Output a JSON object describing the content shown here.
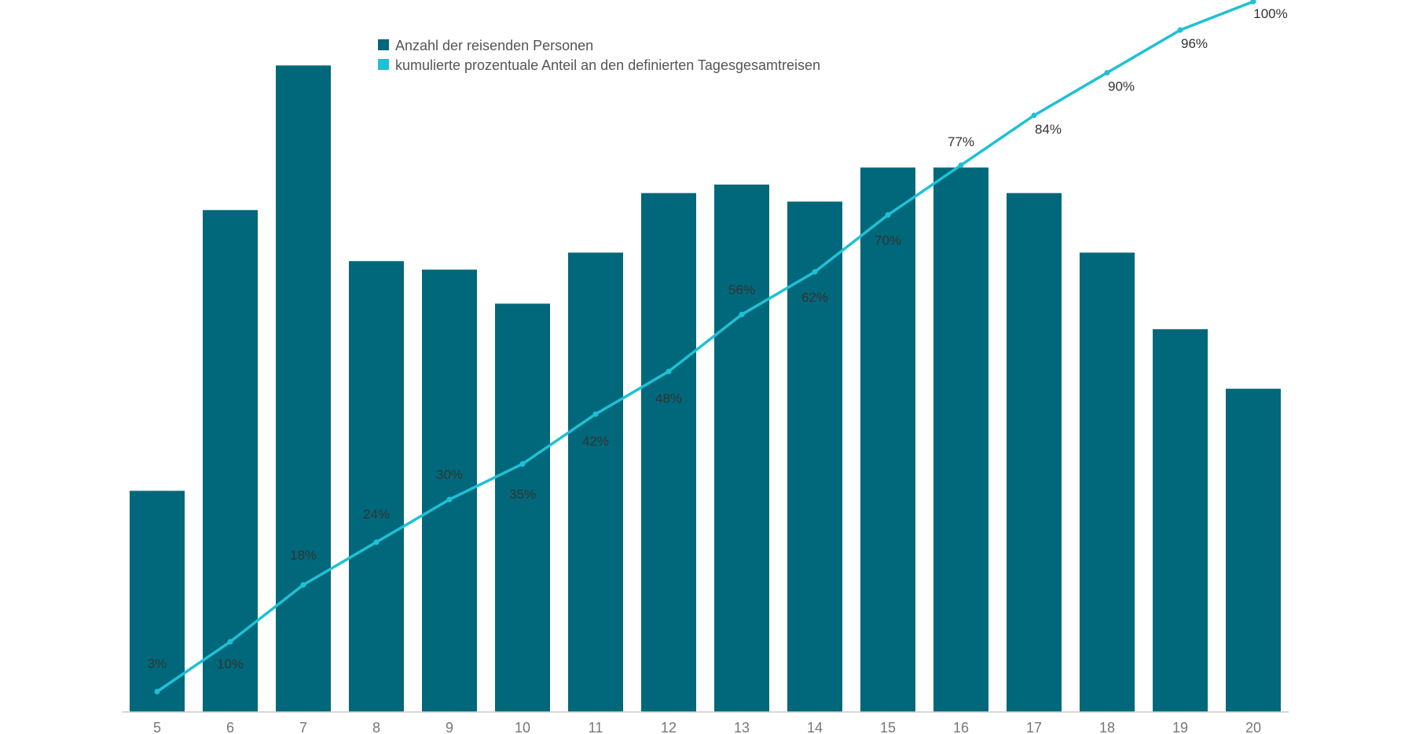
{
  "chart_data": {
    "type": "bar",
    "categories": [
      "5",
      "6",
      "7",
      "8",
      "9",
      "10",
      "11",
      "12",
      "13",
      "14",
      "15",
      "16",
      "17",
      "18",
      "19",
      "20"
    ],
    "series": [
      {
        "name": "Anzahl der reisenden Personen",
        "type": "bar",
        "color": "#00687a",
        "values": [
          26,
          59,
          76,
          53,
          52,
          48,
          54,
          61,
          62,
          60,
          64,
          64,
          61,
          54,
          45,
          38
        ]
      },
      {
        "name": "kumulierte prozentuale Anteil an den definierten Tagesgesamtreisen",
        "type": "line",
        "color": "#1fc0d5",
        "values": [
          3,
          10,
          18,
          24,
          30,
          35,
          42,
          48,
          56,
          62,
          70,
          77,
          84,
          90,
          96,
          100
        ],
        "labels": [
          "3%",
          "10%",
          "18%",
          "24%",
          "30%",
          "35%",
          "42%",
          "48%",
          "56%",
          "62%",
          "70%",
          "77%",
          "84%",
          "90%",
          "96%",
          "100%"
        ]
      }
    ],
    "xlabel": "",
    "ylabel": "",
    "grid": false,
    "legend_position": "top-left"
  }
}
